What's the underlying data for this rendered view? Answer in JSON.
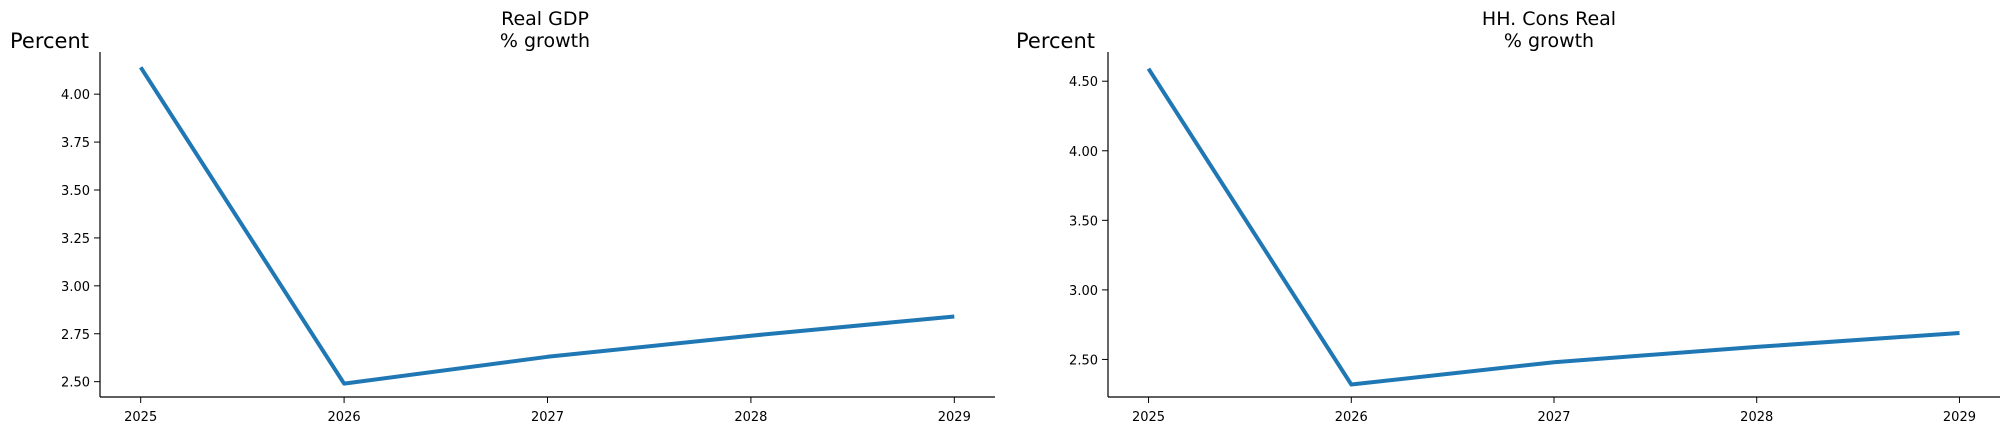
{
  "chart_data": [
    {
      "type": "line",
      "title": "Real GDP",
      "subtitle": "% growth",
      "ylabel": "Percent",
      "xlabel": "",
      "x": [
        2025,
        2026,
        2027,
        2028,
        2029
      ],
      "xticks": [
        "2025",
        "2026",
        "2027",
        "2028",
        "2029"
      ],
      "xlim": [
        2024.8,
        2029.2
      ],
      "ylim": [
        2.42,
        4.22
      ],
      "yticks": [
        "2.50",
        "2.75",
        "3.00",
        "3.25",
        "3.50",
        "3.75",
        "4.00"
      ],
      "series": [
        {
          "values": [
            4.14,
            2.49,
            2.63,
            2.74,
            2.84
          ],
          "color": "#1f77b4"
        }
      ],
      "grid": false,
      "legend": "none"
    },
    {
      "type": "line",
      "title": "HH. Cons Real",
      "subtitle": "% growth",
      "ylabel": "Percent",
      "xlabel": "",
      "x": [
        2025,
        2026,
        2027,
        2028,
        2029
      ],
      "xticks": [
        "2025",
        "2026",
        "2027",
        "2028",
        "2029"
      ],
      "xlim": [
        2024.8,
        2029.2
      ],
      "ylim": [
        2.23,
        4.71
      ],
      "yticks": [
        "2.50",
        "3.00",
        "3.50",
        "4.00",
        "4.50"
      ],
      "series": [
        {
          "values": [
            4.59,
            2.32,
            2.48,
            2.59,
            2.69
          ],
          "color": "#1f77b4"
        }
      ],
      "grid": false,
      "legend": "none"
    }
  ]
}
